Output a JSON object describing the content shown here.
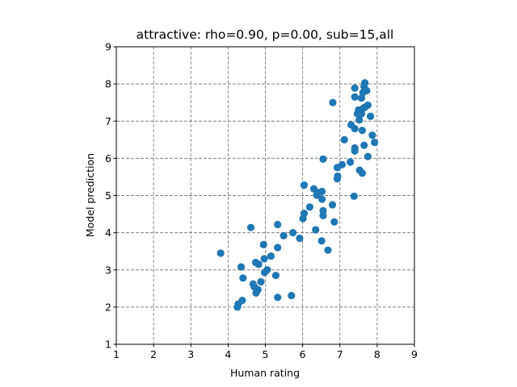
{
  "chart_data": {
    "type": "scatter",
    "title": "attractive: rho=0.90, p=0.00, sub=15,all",
    "xlabel": "Human rating",
    "ylabel": "Model prediction",
    "xlim": [
      1,
      9
    ],
    "ylim": [
      1,
      9
    ],
    "xticks": [
      "1",
      "2",
      "3",
      "4",
      "5",
      "6",
      "7",
      "8",
      "9"
    ],
    "yticks": [
      "1",
      "2",
      "3",
      "4",
      "5",
      "6",
      "7",
      "8",
      "9"
    ],
    "grid": true,
    "grid_style": "dashed",
    "marker_color": "#1f77b4",
    "series": [
      {
        "x": [
          7.67,
          7.65,
          7.4,
          7.72,
          7.62,
          7.4,
          7.58,
          6.81,
          7.75,
          7.68,
          7.63,
          7.5,
          7.58,
          7.47,
          7.82,
          7.3,
          7.4,
          7.52,
          7.6,
          7.12,
          7.87,
          7.93,
          7.65,
          7.4,
          7.4,
          7.75,
          7.28,
          6.55,
          7.53,
          6.93,
          7.6,
          7.06,
          6.94,
          6.93,
          7.38,
          6.04,
          6.3,
          6.41,
          6.52,
          6.38,
          6.52,
          6.8,
          6.19,
          6.04,
          6.55,
          6.55,
          6.01,
          6.85,
          5.33,
          4.61,
          6.35,
          5.74,
          5.49,
          6.51,
          5.92,
          6.68,
          4.95,
          5.33,
          5.15,
          3.8,
          4.74,
          4.97,
          4.82,
          4.35,
          5.05,
          4.98,
          5.28,
          4.4,
          4.88,
          4.67,
          4.7,
          4.8,
          4.75,
          5.33,
          5.7,
          4.38,
          4.27,
          4.25
        ],
        "y": [
          8.03,
          7.93,
          7.89,
          7.82,
          7.77,
          7.65,
          7.62,
          7.5,
          7.43,
          7.38,
          7.35,
          7.3,
          7.2,
          7.2,
          7.13,
          6.9,
          6.8,
          7.03,
          6.75,
          6.5,
          6.62,
          6.43,
          6.35,
          6.28,
          6.2,
          6.05,
          5.9,
          5.98,
          5.68,
          5.75,
          5.6,
          5.83,
          5.52,
          5.45,
          4.98,
          5.28,
          5.18,
          5.08,
          5.11,
          5.01,
          4.9,
          4.75,
          4.69,
          4.52,
          4.59,
          4.46,
          4.38,
          4.29,
          4.22,
          4.14,
          4.08,
          4.0,
          3.92,
          3.78,
          3.85,
          3.53,
          3.68,
          3.6,
          3.37,
          3.45,
          3.2,
          3.3,
          3.15,
          3.08,
          3.0,
          2.93,
          2.85,
          2.78,
          2.68,
          2.62,
          2.55,
          2.47,
          2.38,
          2.26,
          2.31,
          2.18,
          2.08,
          2.0
        ]
      }
    ]
  }
}
